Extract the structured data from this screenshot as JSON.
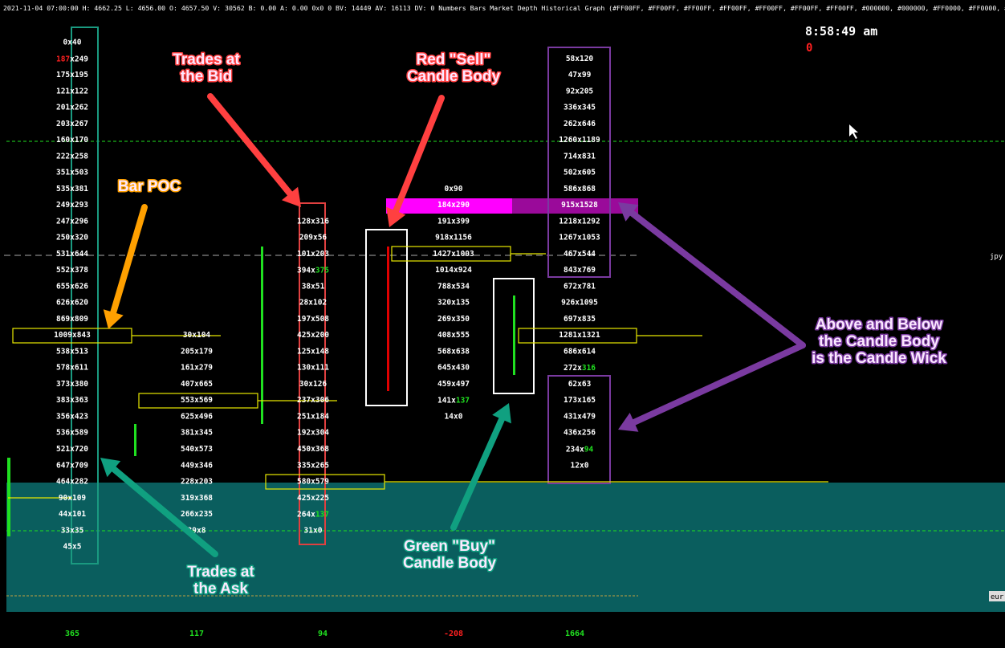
{
  "header": {
    "status": "2021-11-04 07:00:00 H: 4662.25 L: 4656.00 O: 4657.50 V: 30562 B: 0.00 A: 0.00 0x0 0 BV: 14449 AV: 16113 DV: 0 Numbers Bars  Market Depth Historical Graph   (#FF00FF, #FF00FF, #FF00FF, #FF00FF, #FF00FF, #FF00FF, #FF00FF, #000000, #000000, #FF0000, #FF0000, #FF000",
    "clock": "8:58:49 am",
    "counter": "0"
  },
  "price_labels": {
    "upper": "jpy",
    "lower": "eur"
  },
  "columns": [
    {
      "cells": [
        "0x40",
        [
          {
            "t": "187",
            "color": "#ff2020"
          },
          {
            "t": "x249"
          }
        ],
        "175x195",
        "121x122",
        "201x262",
        "203x267",
        "160x170",
        "222x258",
        "351x503",
        "535x381",
        "249x293",
        "247x296",
        "250x320",
        "531x644",
        "552x378",
        "655x626",
        "626x620",
        "869x809",
        "1009x843",
        "538x513",
        "578x611",
        "373x380",
        "383x363",
        "356x423",
        "536x589",
        "521x720",
        "647x709",
        "464x282",
        "90x109",
        "44x101",
        "33x35",
        "45x5"
      ]
    },
    {
      "cells": [
        null,
        null,
        null,
        null,
        null,
        null,
        null,
        null,
        null,
        null,
        null,
        null,
        null,
        null,
        null,
        null,
        null,
        null,
        "30x104",
        "205x179",
        "161x279",
        "407x665",
        "553x569",
        "625x496",
        "381x345",
        "540x573",
        "449x346",
        "228x203",
        "319x368",
        "266x235",
        "39x8",
        null
      ]
    },
    {
      "cells": [
        null,
        null,
        null,
        null,
        null,
        null,
        null,
        null,
        null,
        null,
        null,
        "128x316",
        "209x56",
        "101x203",
        [
          {
            "t": "394x"
          },
          {
            "t": "375",
            "color": "#20e020"
          }
        ],
        "38x51",
        "28x102",
        "197x508",
        "425x200",
        "125x148",
        "130x111",
        "30x126",
        "237x306",
        "251x184",
        "192x304",
        "450x368",
        "335x265",
        "580x579",
        "425x225",
        [
          {
            "t": "264x"
          },
          {
            "t": "137",
            "color": "#20e020"
          }
        ],
        "31x0",
        null
      ]
    },
    {
      "cells": [
        null,
        null,
        null,
        null,
        null,
        null,
        null,
        null,
        null,
        "0x90",
        "184x290",
        "191x399",
        "918x1156",
        "1427x1003",
        "1014x924",
        "788x534",
        "320x135",
        "269x350",
        "408x555",
        "568x638",
        "645x430",
        "459x497",
        [
          {
            "t": "141x"
          },
          {
            "t": "137",
            "color": "#20e020"
          }
        ],
        "14x0",
        null,
        null,
        null,
        null,
        null,
        null,
        null,
        null
      ]
    },
    {
      "cells": [
        null,
        "58x120",
        "47x99",
        "92x205",
        "336x345",
        "262x646",
        "1260x1189",
        "714x831",
        "502x605",
        "586x868",
        "915x1528",
        "1218x1292",
        "1267x1053",
        "467x544",
        "843x769",
        "672x781",
        "926x1095",
        "697x835",
        "1281x1321",
        "686x614",
        [
          {
            "t": "272x"
          },
          {
            "t": "316",
            "color": "#20e020"
          }
        ],
        "62x63",
        "173x165",
        "431x479",
        "436x256",
        [
          {
            "t": "234x"
          },
          {
            "t": "94",
            "color": "#20e020"
          }
        ],
        "12x0",
        null,
        null,
        null,
        null,
        null
      ]
    }
  ],
  "totals": [
    {
      "text": "365",
      "color": "#20e020"
    },
    {
      "text": "117",
      "color": "#20e020"
    },
    {
      "text": "94",
      "color": "#20e020"
    },
    {
      "text": "-208",
      "color": "#ff2020"
    },
    {
      "text": "1664",
      "color": "#20e020"
    }
  ],
  "annotations": [
    {
      "lines": [
        "Trades at",
        "the Bid"
      ],
      "color": "#ff4040"
    },
    {
      "lines": [
        "Red \"Sell\"",
        "Candle Body"
      ],
      "color": "#ff4040"
    },
    {
      "lines": [
        "Bar POC"
      ],
      "color": "#ffa000"
    },
    {
      "lines": [
        "Above and Below",
        "the Candle Body",
        "is the Candle Wick"
      ],
      "color": "#7a3aa0"
    },
    {
      "lines": [
        "Trades at",
        "the Ask"
      ],
      "color": "#10a080"
    },
    {
      "lines": [
        "Green \"Buy\"",
        "Candle Body"
      ],
      "color": "#10a080"
    }
  ]
}
